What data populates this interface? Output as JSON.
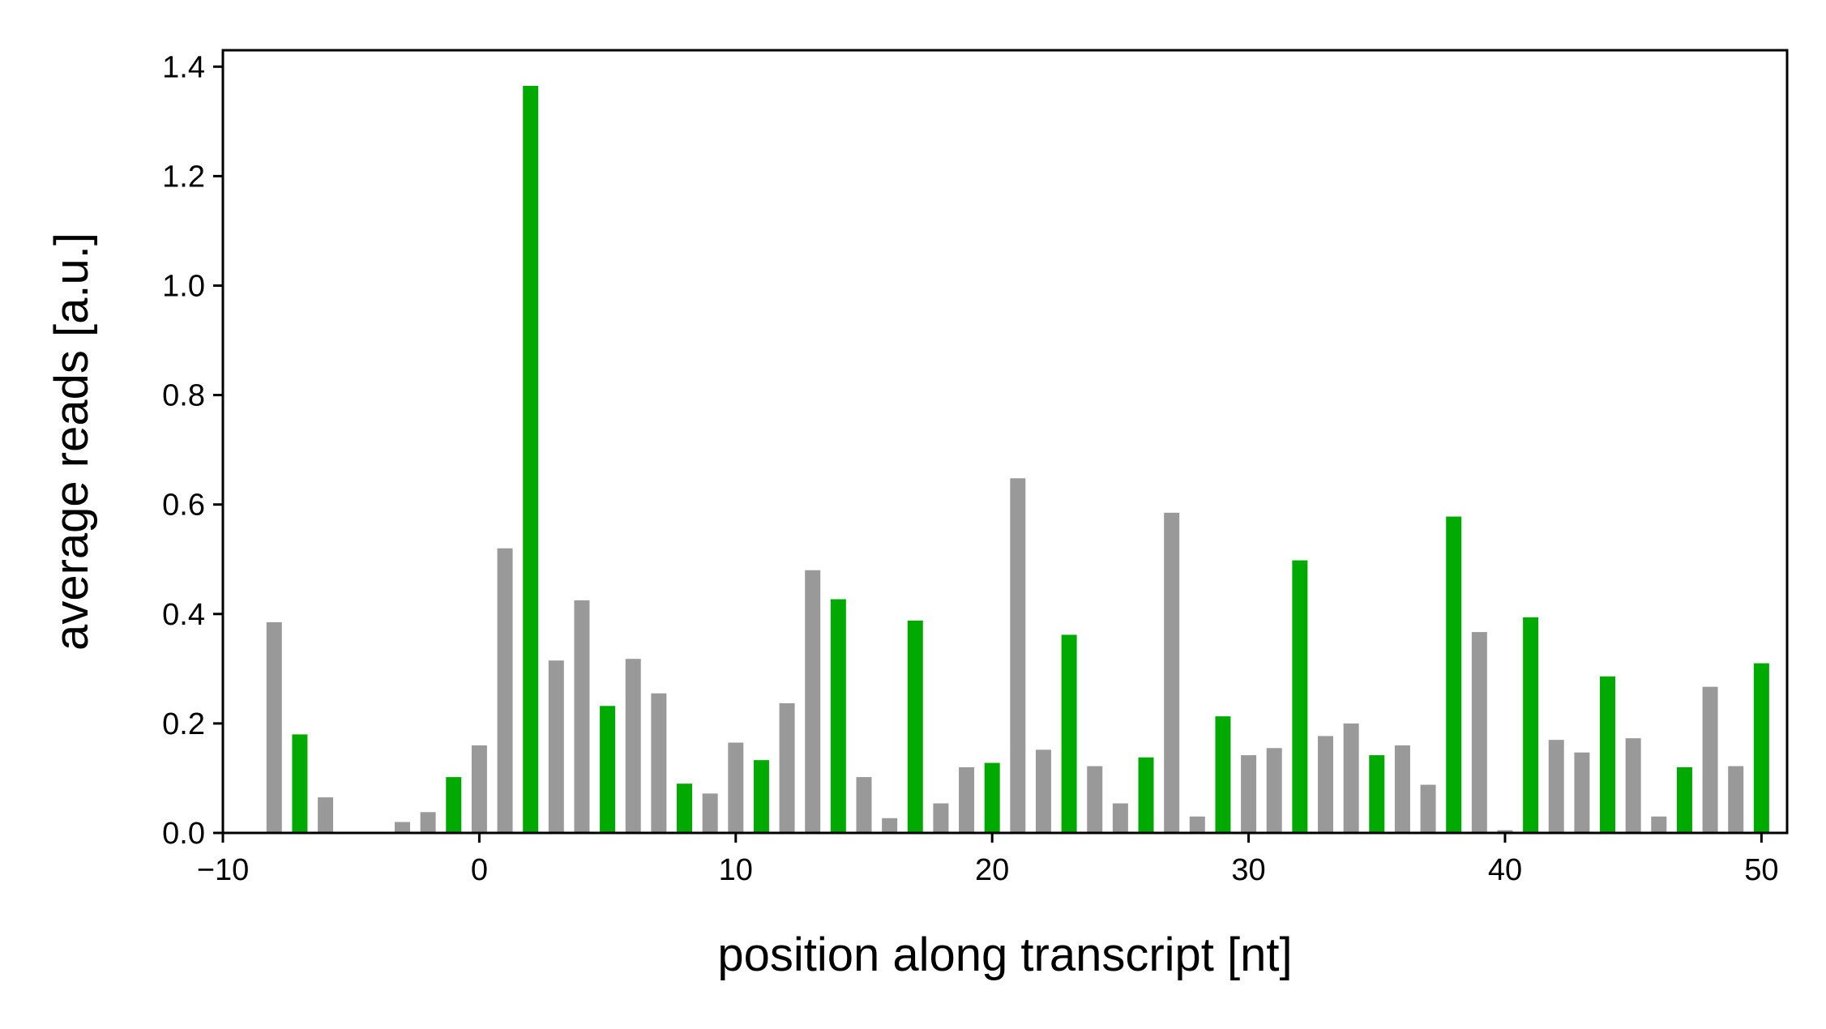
{
  "chart_data": {
    "type": "bar",
    "title": "",
    "xlabel": "position along transcript [nt]",
    "ylabel": "average reads [a.u.]",
    "xlim": [
      -10,
      51
    ],
    "ylim": [
      0,
      1.43
    ],
    "x_ticks": [
      -10,
      0,
      10,
      20,
      30,
      40,
      50
    ],
    "x_tick_labels": [
      "−10",
      "0",
      "10",
      "20",
      "30",
      "40",
      "50"
    ],
    "y_ticks": [
      0.0,
      0.2,
      0.4,
      0.6,
      0.8,
      1.0,
      1.2,
      1.4
    ],
    "y_tick_labels": [
      "0.0",
      "0.2",
      "0.4",
      "0.6",
      "0.8",
      "1.0",
      "1.2",
      "1.4"
    ],
    "grid": false,
    "colors": {
      "frame0": "#00aa00",
      "other": "#999999"
    },
    "x": [
      -8,
      -7,
      -6,
      -5,
      -4,
      -3,
      -2,
      -1,
      0,
      1,
      2,
      3,
      4,
      5,
      6,
      7,
      8,
      9,
      10,
      11,
      12,
      13,
      14,
      15,
      16,
      17,
      18,
      19,
      20,
      21,
      22,
      23,
      24,
      25,
      26,
      27,
      28,
      29,
      30,
      31,
      32,
      33,
      34,
      35,
      36,
      37,
      38,
      39,
      40,
      41,
      42,
      43,
      44,
      45,
      46,
      47,
      48,
      49,
      50
    ],
    "values": [
      0.385,
      0.18,
      0.065,
      0,
      0,
      0.02,
      0.038,
      0.102,
      0.16,
      0.52,
      1.365,
      0.315,
      0.425,
      0.232,
      0.318,
      0.255,
      0.09,
      0.072,
      0.165,
      0.133,
      0.237,
      0.48,
      0.427,
      0.102,
      0.027,
      0.388,
      0.054,
      0.12,
      0.128,
      0.648,
      0.152,
      0.362,
      0.122,
      0.054,
      0.138,
      0.585,
      0.03,
      0.213,
      0.142,
      0.155,
      0.498,
      0.177,
      0.2,
      0.142,
      0.16,
      0.088,
      0.578,
      0.367,
      0.005,
      0.394,
      0.17,
      0.147,
      0.286,
      0.173,
      0.03,
      0.12,
      0.267,
      0.122,
      0.31
    ],
    "highlight": [
      false,
      true,
      false,
      false,
      false,
      false,
      false,
      true,
      false,
      false,
      true,
      false,
      false,
      true,
      false,
      false,
      true,
      false,
      false,
      true,
      false,
      false,
      true,
      false,
      false,
      true,
      false,
      false,
      true,
      false,
      false,
      true,
      false,
      false,
      true,
      false,
      false,
      true,
      false,
      false,
      true,
      false,
      false,
      true,
      false,
      false,
      true,
      false,
      false,
      true,
      false,
      false,
      true,
      false,
      false,
      true,
      false,
      false,
      true
    ]
  }
}
